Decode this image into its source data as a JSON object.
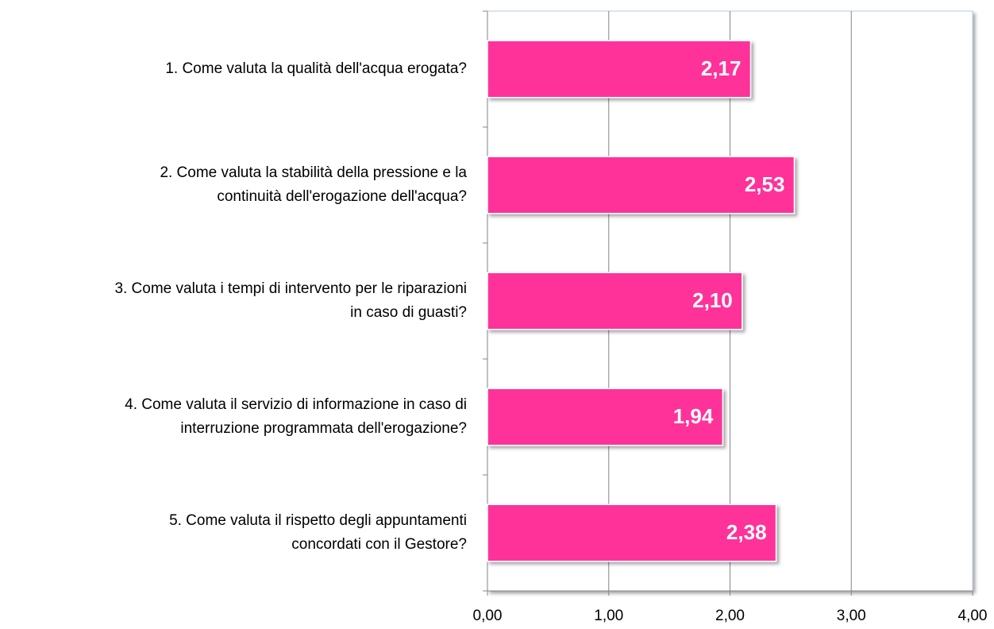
{
  "chart_data": {
    "type": "barh",
    "categories": [
      [
        "1. Come valuta la qualità dell'acqua erogata?"
      ],
      [
        "2. Come valuta la stabilità della pressione e la",
        "continuità dell'erogazione dell'acqua?"
      ],
      [
        "3. Come valuta i tempi di intervento per le riparazioni",
        "in caso di guasti?"
      ],
      [
        "4. Come valuta il servizio di informazione in caso di",
        "interruzione programmata dell'erogazione?"
      ],
      [
        "5. Come valuta il rispetto degli appuntamenti",
        "concordati con il Gestore?"
      ]
    ],
    "values": [
      2.17,
      2.53,
      2.1,
      1.94,
      2.38
    ],
    "value_labels": [
      "2,17",
      "2,53",
      "2,10",
      "1,94",
      "2,38"
    ],
    "color": "#ff3399",
    "xlim": [
      0,
      4
    ],
    "xticks": [
      {
        "value": 0,
        "label": "0,00"
      },
      {
        "value": 1,
        "label": "1,00"
      },
      {
        "value": 2,
        "label": "2,00"
      },
      {
        "value": 3,
        "label": "3,00"
      },
      {
        "value": 4,
        "label": "4,00"
      }
    ],
    "grid": true
  }
}
